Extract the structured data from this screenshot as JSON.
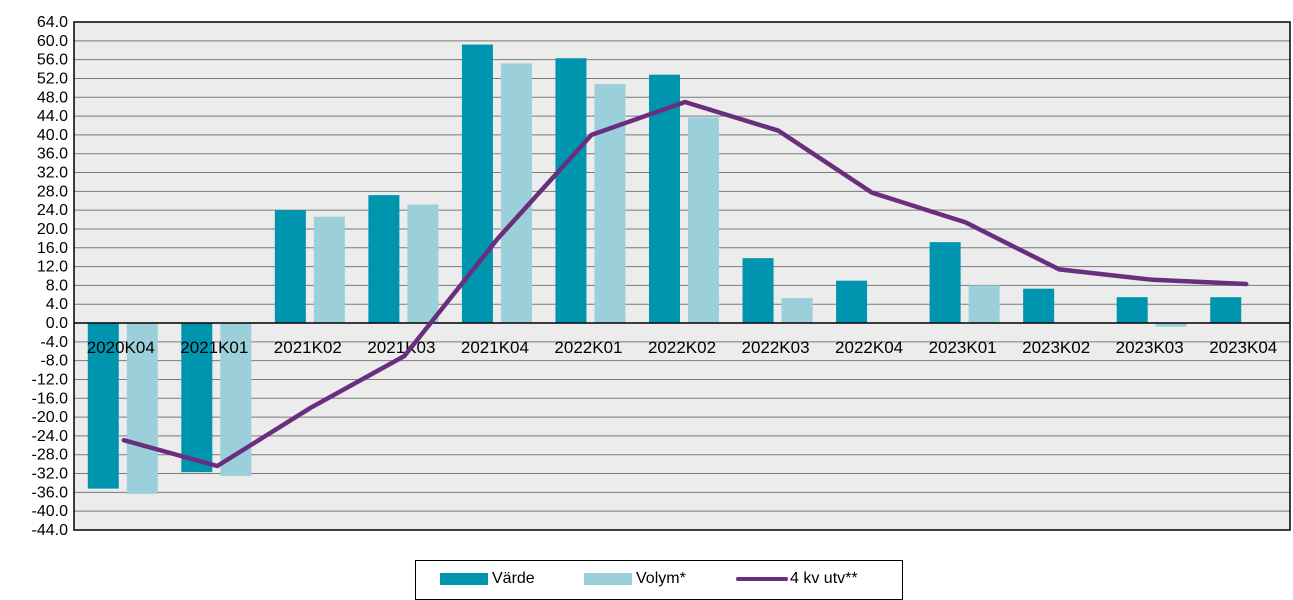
{
  "chart_data": {
    "type": "bar",
    "categories": [
      "2020K04",
      "2021K01",
      "2021K02",
      "2021K03",
      "2021K04",
      "2022K01",
      "2022K02",
      "2022K03",
      "2022K04",
      "2023K01",
      "2023K02",
      "2023K03",
      "2023K04"
    ],
    "series": [
      {
        "name": "Värde",
        "kind": "bar",
        "color": "#0095ae",
        "values": [
          -35.2,
          -31.7,
          24.0,
          27.2,
          59.2,
          56.3,
          52.8,
          13.8,
          9.0,
          17.2,
          7.3,
          5.5,
          5.5
        ]
      },
      {
        "name": "Volym*",
        "kind": "bar",
        "color": "#9bd0db",
        "values": [
          -36.3,
          -32.5,
          22.6,
          25.2,
          55.2,
          50.8,
          43.7,
          5.3,
          0.0,
          8.0,
          0.0,
          -0.8,
          0.0
        ]
      },
      {
        "name": "4 kv utv**",
        "kind": "line",
        "color": "#6a2e7f",
        "values": [
          -24.9,
          -30.4,
          -18.0,
          -7.0,
          18.0,
          40.0,
          47.0,
          40.9,
          27.7,
          21.4,
          11.4,
          9.2,
          8.3
        ]
      }
    ],
    "ylim": [
      -44,
      64
    ],
    "ytick_step": 4,
    "ytick_labels": [
      "64.0",
      "60.0",
      "56.0",
      "52.0",
      "48.0",
      "44.0",
      "40.0",
      "36.0",
      "32.0",
      "28.0",
      "24.0",
      "20.0",
      "16.0",
      "12.0",
      "8.0",
      "4.0",
      "0.0",
      "-4.0",
      "-8.0",
      "-12.0",
      "-16.0",
      "-20.0",
      "-24.0",
      "-28.0",
      "-32.0",
      "-36.0",
      "-40.0",
      "-44.0"
    ],
    "grid": true,
    "plot_background": "#ececec",
    "legend_position": "bottom-center",
    "title": "",
    "xlabel": "",
    "ylabel": ""
  }
}
